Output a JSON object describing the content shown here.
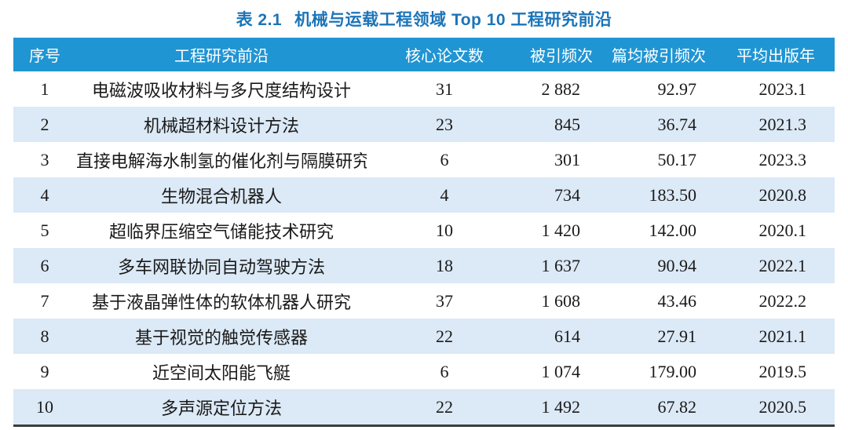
{
  "title": {
    "label": "表 2.1",
    "text": "机械与运载工程领域 Top 10 工程研究前沿"
  },
  "colors": {
    "header_bg": "#2095D3",
    "header_text": "#FFFFFF",
    "alt_row_bg": "#DCE9F6",
    "title_color": "#1B74B8",
    "body_text": "#1A1A1A",
    "border_dark": "#3D3D3D"
  },
  "table": {
    "columns": [
      {
        "key": "index",
        "label": "序号"
      },
      {
        "key": "front",
        "label": "工程研究前沿"
      },
      {
        "key": "core_papers",
        "label": "核心论文数"
      },
      {
        "key": "citations",
        "label": "被引频次"
      },
      {
        "key": "citations_per_paper",
        "label": "篇均被引频次"
      },
      {
        "key": "mean_year",
        "label": "平均出版年"
      }
    ],
    "rows": [
      {
        "index": "1",
        "front": "电磁波吸收材料与多尺度结构设计",
        "core_papers": "31",
        "citations": "2 882",
        "citations_per_paper": "92.97",
        "mean_year": "2023.1"
      },
      {
        "index": "2",
        "front": "机械超材料设计方法",
        "core_papers": "23",
        "citations": "845",
        "citations_per_paper": "36.74",
        "mean_year": "2021.3"
      },
      {
        "index": "3",
        "front": "直接电解海水制氢的催化剂与隔膜研究",
        "core_papers": "6",
        "citations": "301",
        "citations_per_paper": "50.17",
        "mean_year": "2023.3"
      },
      {
        "index": "4",
        "front": "生物混合机器人",
        "core_papers": "4",
        "citations": "734",
        "citations_per_paper": "183.50",
        "mean_year": "2020.8"
      },
      {
        "index": "5",
        "front": "超临界压缩空气储能技术研究",
        "core_papers": "10",
        "citations": "1 420",
        "citations_per_paper": "142.00",
        "mean_year": "2020.1"
      },
      {
        "index": "6",
        "front": "多车网联协同自动驾驶方法",
        "core_papers": "18",
        "citations": "1 637",
        "citations_per_paper": "90.94",
        "mean_year": "2022.1"
      },
      {
        "index": "7",
        "front": "基于液晶弹性体的软体机器人研究",
        "core_papers": "37",
        "citations": "1 608",
        "citations_per_paper": "43.46",
        "mean_year": "2022.2"
      },
      {
        "index": "8",
        "front": "基于视觉的触觉传感器",
        "core_papers": "22",
        "citations": "614",
        "citations_per_paper": "27.91",
        "mean_year": "2021.1"
      },
      {
        "index": "9",
        "front": "近空间太阳能飞艇",
        "core_papers": "6",
        "citations": "1 074",
        "citations_per_paper": "179.00",
        "mean_year": "2019.5"
      },
      {
        "index": "10",
        "front": "多声源定位方法",
        "core_papers": "22",
        "citations": "1 492",
        "citations_per_paper": "67.82",
        "mean_year": "2020.5"
      }
    ]
  }
}
